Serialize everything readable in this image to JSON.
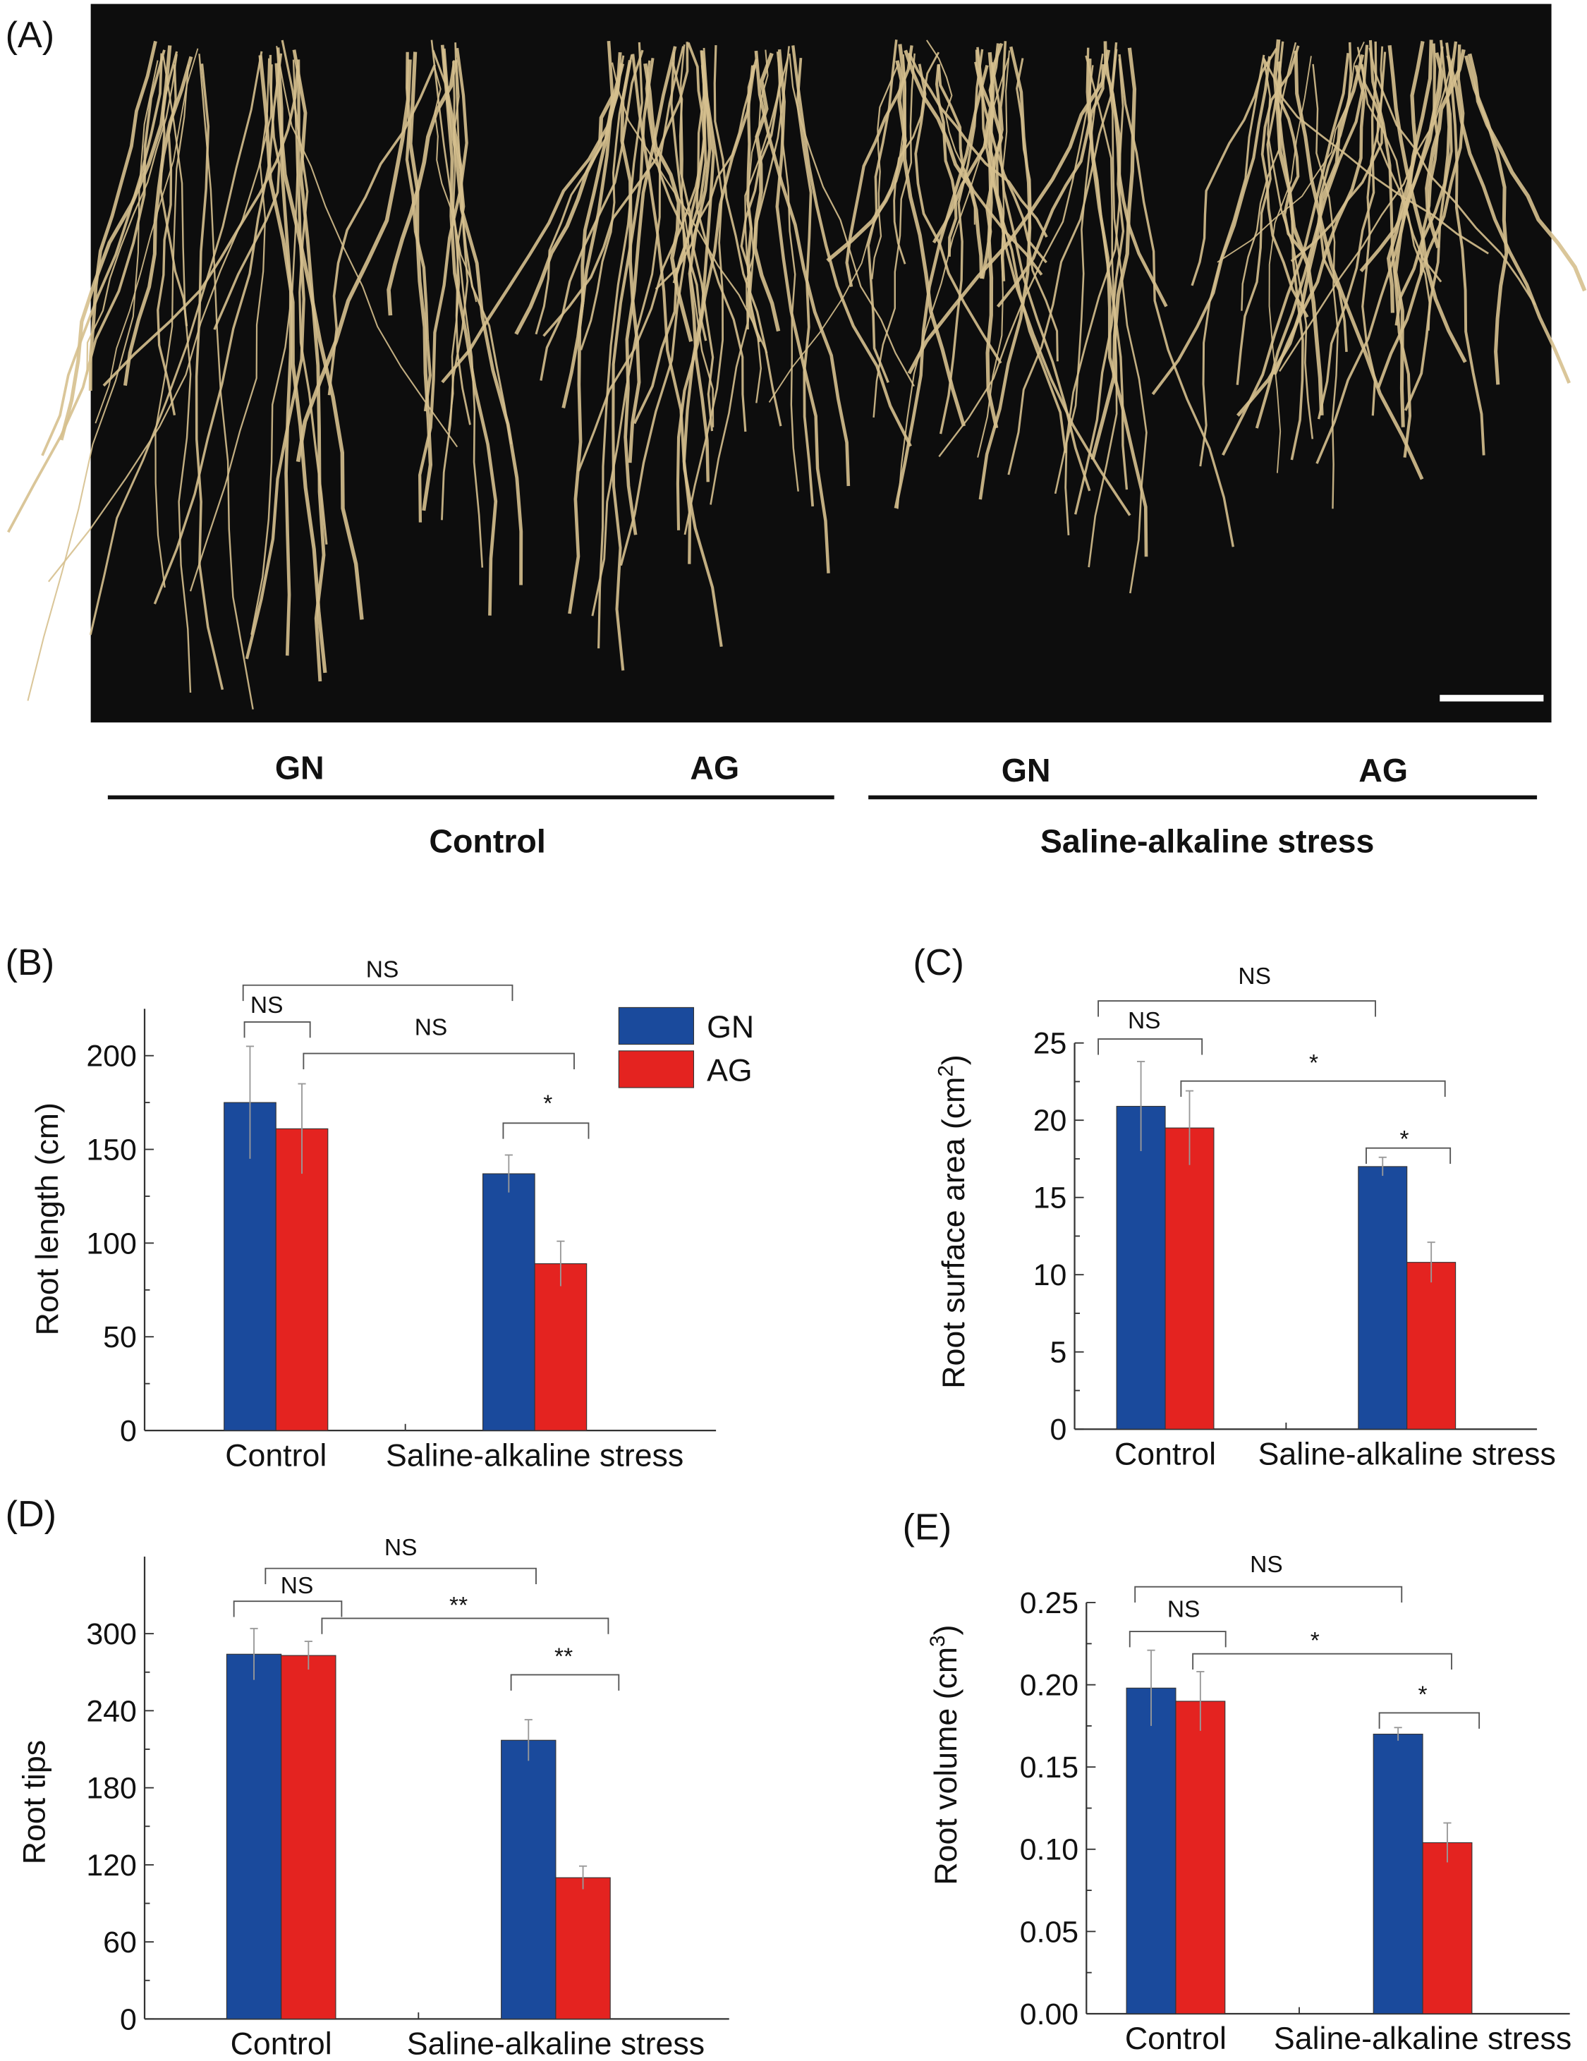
{
  "panel_a": {
    "label": "(A)",
    "groups": [
      {
        "condition": "Control",
        "cultivars": [
          "GN",
          "AG"
        ]
      },
      {
        "condition": "Saline-alkaline stress",
        "cultivars": [
          "GN",
          "AG"
        ]
      }
    ],
    "photo_background": "#0d0d0d",
    "root_color": "#d6c08e"
  },
  "colors": {
    "GN": "#1a4a9c",
    "AG": "#e42320"
  },
  "chart_data": [
    {
      "panel": "(B)",
      "type": "bar",
      "ylabel": "Root length (cm)",
      "categories": [
        "Control",
        "Saline-alkaline stress"
      ],
      "ylim": [
        0,
        225
      ],
      "yticks": [
        0,
        50,
        100,
        150,
        200
      ],
      "series": [
        {
          "name": "GN",
          "values": [
            175,
            137
          ],
          "errors": [
            30,
            10
          ]
        },
        {
          "name": "AG",
          "values": [
            161,
            89
          ],
          "errors": [
            24,
            12
          ]
        }
      ],
      "significance": [
        "NS",
        "NS",
        "NS",
        "*"
      ],
      "legend": [
        "GN",
        "AG"
      ],
      "legend_position": "top-right"
    },
    {
      "panel": "(C)",
      "type": "bar",
      "ylabel": "Root surface area (cm",
      "ylabel_sup": "2",
      "ylabel_end": ")",
      "categories": [
        "Control",
        "Saline-alkaline stress"
      ],
      "ylim": [
        0,
        25
      ],
      "yticks": [
        0,
        5,
        10,
        15,
        20,
        25
      ],
      "series": [
        {
          "name": "GN",
          "values": [
            20.9,
            17.0
          ],
          "errors": [
            2.9,
            0.6
          ]
        },
        {
          "name": "AG",
          "values": [
            19.5,
            10.8
          ],
          "errors": [
            2.4,
            1.3
          ]
        }
      ],
      "significance": [
        "NS",
        "NS",
        "*",
        "*"
      ]
    },
    {
      "panel": "(D)",
      "type": "bar",
      "ylabel": "Root tips",
      "categories": [
        "Control",
        "Saline-alkaline stress"
      ],
      "ylim": [
        0,
        360
      ],
      "yticks": [
        0,
        60,
        120,
        180,
        240,
        300
      ],
      "series": [
        {
          "name": "GN",
          "values": [
            284,
            217
          ],
          "errors": [
            20,
            16
          ]
        },
        {
          "name": "AG",
          "values": [
            283,
            110
          ],
          "errors": [
            11,
            9
          ]
        }
      ],
      "significance": [
        "NS",
        "NS",
        "**",
        "**"
      ]
    },
    {
      "panel": "(E)",
      "type": "bar",
      "ylabel": "Root volume (cm",
      "ylabel_sup": "3",
      "ylabel_end": ")",
      "categories": [
        "Control",
        "Saline-alkaline stress"
      ],
      "ylim": [
        0,
        0.25
      ],
      "yticks": [
        "0.00",
        "0.05",
        "0.10",
        "0.15",
        "0.20",
        "0.25"
      ],
      "series": [
        {
          "name": "GN",
          "values": [
            0.198,
            0.17
          ],
          "errors": [
            0.023,
            0.004
          ]
        },
        {
          "name": "AG",
          "values": [
            0.19,
            0.104
          ],
          "errors": [
            0.018,
            0.012
          ]
        }
      ],
      "significance": [
        "NS",
        "NS",
        "*",
        "*"
      ]
    }
  ]
}
